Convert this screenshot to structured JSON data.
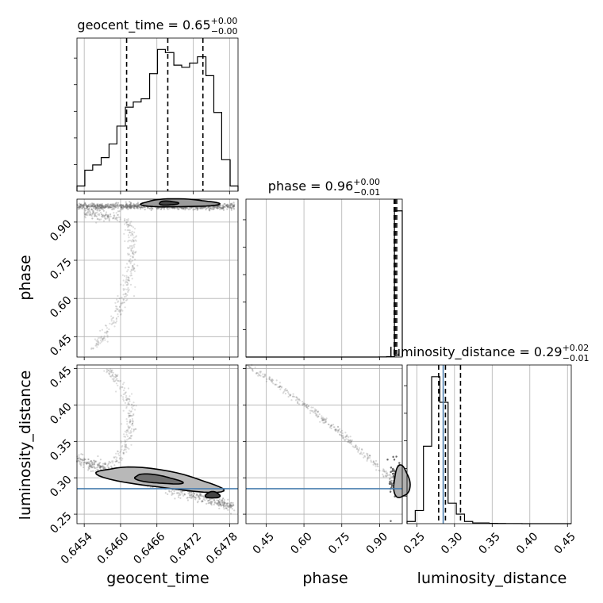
{
  "chart_data": {
    "type": "corner",
    "parameters": [
      "geocent_time",
      "phase",
      "luminosity_distance"
    ],
    "axis_labels": {
      "geocent_time": "geocent_time",
      "phase": "phase",
      "luminosity_distance": "luminosity_distance"
    },
    "ranges": {
      "geocent_time": [
        0.64528,
        0.64794
      ],
      "phase": [
        0.37,
        0.99
      ],
      "luminosity_distance": [
        0.237,
        0.455
      ]
    },
    "ticks": {
      "geocent_time": {
        "values": [
          0.6454,
          0.646,
          0.6466,
          0.6472,
          0.6478
        ],
        "labels": [
          "0.6454",
          "0.6460",
          "0.6466",
          "0.6472",
          "0.6478"
        ]
      },
      "phase": {
        "values": [
          0.45,
          0.6,
          0.75,
          0.9
        ],
        "labels": [
          "0.45",
          "0.60",
          "0.75",
          "0.90"
        ]
      },
      "luminosity_distance": {
        "values": [
          0.25,
          0.3,
          0.35,
          0.4,
          0.45
        ],
        "labels": [
          "0.25",
          "0.30",
          "0.35",
          "0.40",
          "0.45"
        ]
      }
    },
    "titles": [
      {
        "param": "geocent_time",
        "name": "geocent_time",
        "median": "0.65",
        "plus": "+0.00",
        "minus": "−0.00"
      },
      {
        "param": "phase",
        "name": "phase",
        "median": "0.96",
        "plus": "+0.00",
        "minus": "−0.01"
      },
      {
        "param": "luminosity_distance",
        "name": "luminosity_distance",
        "median": "0.29",
        "plus": "+0.02",
        "minus": "−0.01"
      }
    ],
    "quantiles": {
      "geocent_time": [
        0.6461,
        0.64678,
        0.64736
      ],
      "phase": [
        0.958,
        0.962,
        0.968
      ],
      "luminosity_distance": [
        0.279,
        0.288,
        0.308
      ]
    },
    "truths": {
      "luminosity_distance": 0.285
    },
    "truth_color": "#4c80b0",
    "histograms": {
      "geocent_time": {
        "edges": [
          0.64528,
          0.64541,
          0.64554,
          0.64568,
          0.64581,
          0.64594,
          0.64608,
          0.64621,
          0.64634,
          0.64648,
          0.64661,
          0.64674,
          0.64688,
          0.64701,
          0.64714,
          0.64727,
          0.64741,
          0.64754,
          0.64767,
          0.64781,
          0.64794
        ],
        "counts": [
          5,
          20,
          25,
          32,
          45,
          62,
          80,
          85,
          88,
          112,
          135,
          132,
          120,
          118,
          122,
          128,
          110,
          75,
          30,
          5
        ]
      },
      "phase": {
        "lo": 0.37,
        "hi": 0.99,
        "bins": 20,
        "counts": [
          0,
          0,
          0,
          0,
          0,
          0,
          0,
          0,
          0,
          0,
          0,
          0,
          0,
          0,
          0,
          0,
          0,
          1,
          3,
          1000
        ]
      },
      "luminosity_distance": {
        "lo": 0.237,
        "hi": 0.455,
        "bins": 20,
        "counts": [
          3,
          18,
          106,
          201,
          166,
          28,
          13,
          3,
          1,
          1,
          0.5,
          0.3,
          0.2,
          0.1,
          0,
          0,
          0,
          0,
          0,
          0
        ]
      }
    },
    "scatter_series": {
      "phase_vs_geocent_time": {
        "x": "geocent_time",
        "y": "phase"
      },
      "luminosity_distance_vs_geocent_time": {
        "x": "geocent_time",
        "y": "luminosity_distance"
      },
      "luminosity_distance_vs_phase": {
        "x": "phase",
        "y": "luminosity_distance"
      }
    }
  }
}
